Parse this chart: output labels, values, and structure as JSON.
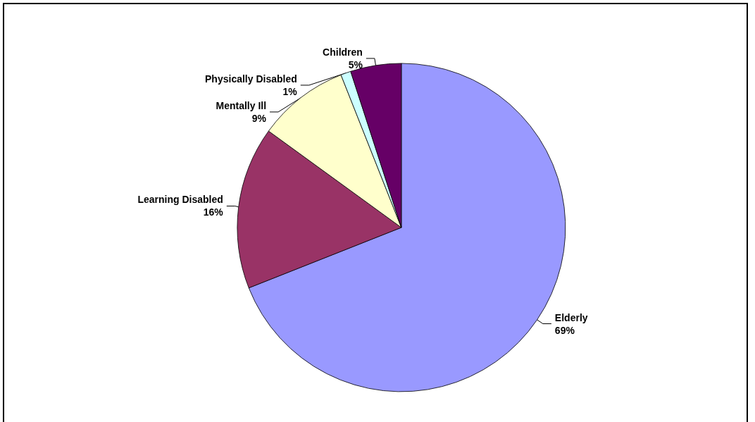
{
  "chart_data": {
    "type": "pie",
    "categories": [
      "Elderly",
      "Learning Disabled",
      "Mentally Ill",
      "Physically Disabled",
      "Children"
    ],
    "values": [
      69,
      16,
      9,
      1,
      5
    ],
    "colors": [
      "#9999ff",
      "#993366",
      "#ffffcc",
      "#ccffff",
      "#660066"
    ],
    "value_labels": [
      "69%",
      "16%",
      "9%",
      "1%",
      "5%"
    ],
    "legend": false
  }
}
